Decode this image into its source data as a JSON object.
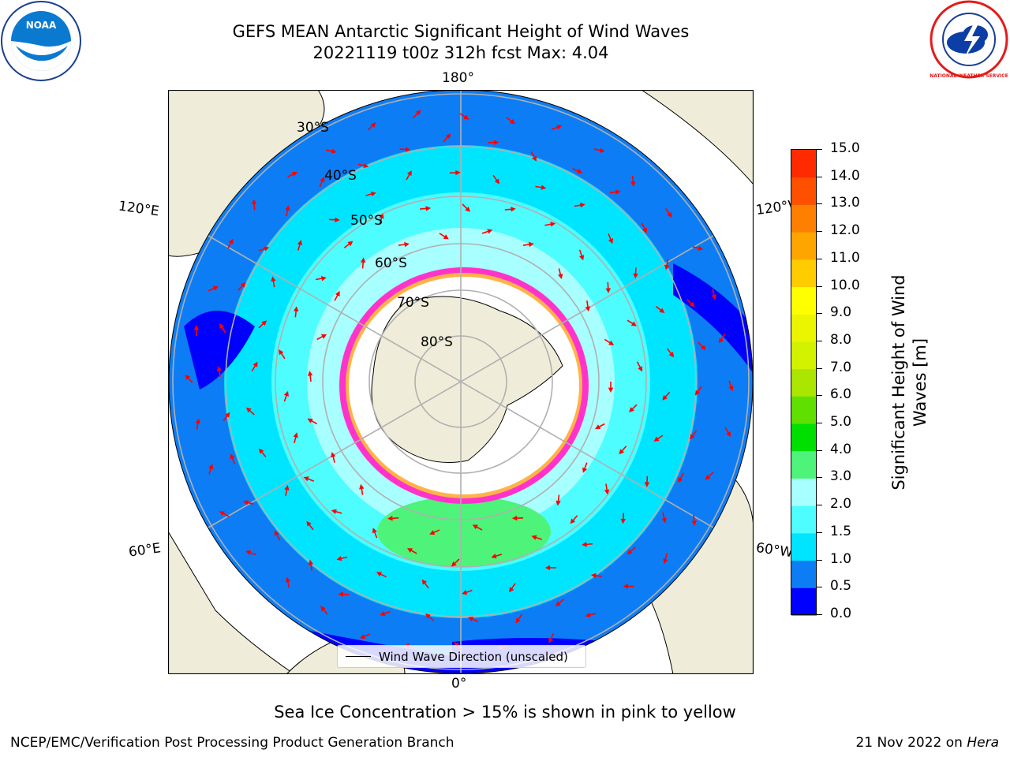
{
  "title": {
    "line1": "GEFS MEAN Antarctic Significant Height of Wind Waves",
    "line2": "20221119 t00z 312h fcst   Max: 4.04"
  },
  "logos": {
    "left": "NOAA",
    "right": "NATIONAL WEATHER SERVICE"
  },
  "map": {
    "projection": "south polar stereographic",
    "lon_labels": {
      "top": "180°",
      "bottom": "0°",
      "upper_left": "120°E",
      "upper_right": "120°W",
      "lower_left": "60°E",
      "lower_right": "60°W"
    },
    "lat_labels": [
      "30°S",
      "40°S",
      "50°S",
      "60°S",
      "70°S",
      "80°S"
    ],
    "legend_label": "Wind Wave Direction (unscaled)",
    "colors": {
      "land": "#efedd9",
      "ice_free_shelf": "#ffffff",
      "grid": "#b0b0b0",
      "arrow": "#ff0000",
      "sea_ice": "#ff33cc"
    }
  },
  "colorbar": {
    "label_line1": "Significant Height of Wind",
    "label_line2": "Waves [m]",
    "ticks": [
      "0.0",
      "0.5",
      "1.0",
      "1.5",
      "2.0",
      "3.0",
      "4.0",
      "5.0",
      "6.0",
      "7.0",
      "8.0",
      "9.0",
      "10.0",
      "11.0",
      "12.0",
      "13.0",
      "14.0",
      "15.0"
    ],
    "colors": [
      "#0000ff",
      "#0d7df5",
      "#00e5ff",
      "#4dfdff",
      "#a8ffff",
      "#4ef37a",
      "#00e000",
      "#5fe000",
      "#aae600",
      "#d2f200",
      "#ecf500",
      "#ffff00",
      "#ffcc00",
      "#ffa500",
      "#ff8000",
      "#ff5000",
      "#ff2a00"
    ]
  },
  "caption": "Sea Ice Concentration > 15% is shown in pink to yellow",
  "footer": {
    "left": "NCEP/EMC/Verification Post Processing Product Generation Branch",
    "right_date": "21 Nov 2022 on",
    "right_machine": "Hera"
  }
}
